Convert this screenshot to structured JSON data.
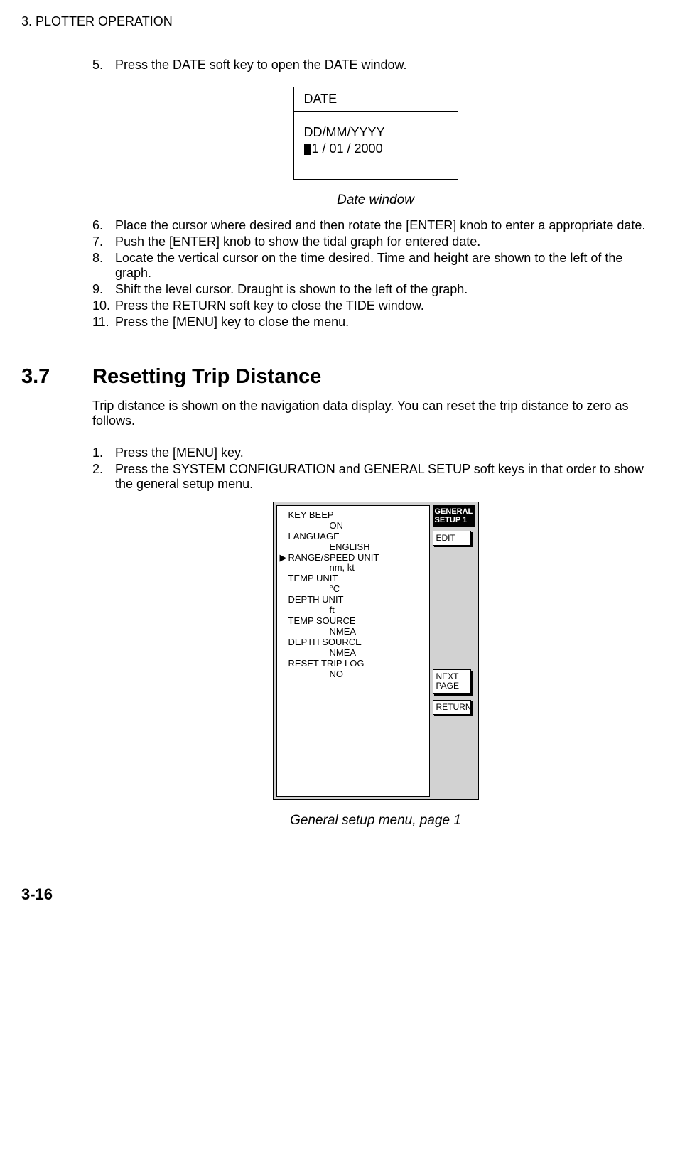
{
  "header": "3. PLOTTER OPERATION",
  "step5": {
    "num": "5.",
    "text": "Press the DATE soft key to open the DATE window."
  },
  "date_window": {
    "title": "DATE",
    "line1": "DD/MM/YYYY",
    "line2_cursor_char": "0",
    "line2_rest": "1 / 01 / 2000"
  },
  "caption1": "Date window",
  "steps_after": [
    {
      "num": "6.",
      "text": "Place the cursor where desired and then rotate the [ENTER] knob to enter a appropriate date."
    },
    {
      "num": "7.",
      "text": "Push the [ENTER] knob to show the tidal graph for entered date."
    },
    {
      "num": "8.",
      "text": "Locate the vertical cursor on the time desired. Time and height are shown to the left of the graph."
    },
    {
      "num": "9.",
      "text": "Shift the level cursor. Draught is shown to the left of the graph."
    },
    {
      "num": "10.",
      "text": "Press the RETURN soft key to close the TIDE window."
    },
    {
      "num": "11.",
      "text": "Press the [MENU] key to close the menu."
    }
  ],
  "section": {
    "num": "3.7",
    "title": "Resetting Trip Distance"
  },
  "section_para": "Trip distance is shown on the navigation data display. You can reset the trip distance to zero as follows.",
  "section_steps": [
    {
      "num": "1.",
      "text": "Press the [MENU] key."
    },
    {
      "num": "2.",
      "text": "Press the SYSTEM CONFIGURATION and GENERAL SETUP soft keys in that order to show the general setup menu."
    }
  ],
  "setup": {
    "title_line1": "GENERAL",
    "title_line2": "SETUP 1",
    "items": [
      {
        "marker": "",
        "label": "KEY BEEP",
        "value": "ON"
      },
      {
        "marker": "",
        "label": "LANGUAGE",
        "value": "ENGLISH"
      },
      {
        "marker": "▶",
        "label": "RANGE/SPEED UNIT",
        "value": "nm, kt"
      },
      {
        "marker": "",
        "label": "TEMP UNIT",
        "value": "°C"
      },
      {
        "marker": "",
        "label": "DEPTH UNIT",
        "value": "ft"
      },
      {
        "marker": "",
        "label": "TEMP SOURCE",
        "value": "NMEA"
      },
      {
        "marker": "",
        "label": "DEPTH SOURCE",
        "value": "NMEA"
      },
      {
        "marker": "",
        "label": "RESET TRIP LOG",
        "value": "NO"
      }
    ],
    "softkeys": {
      "edit": "EDIT",
      "next_line1": "NEXT",
      "next_line2": "PAGE",
      "return": "RETURN"
    }
  },
  "caption2": "General setup menu, page 1",
  "page_num": "3-16"
}
